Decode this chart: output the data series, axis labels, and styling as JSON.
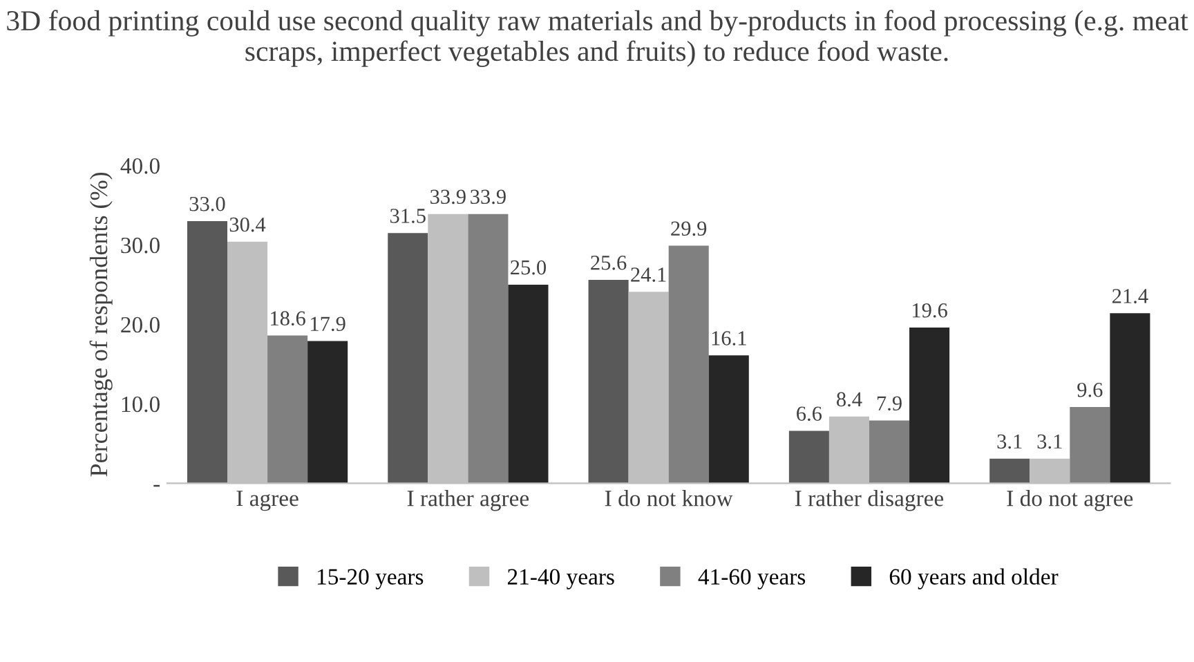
{
  "chart_data": {
    "type": "bar",
    "title": "3D food printing could use second quality raw materials and by-products in food processing (e.g. meat scraps, imperfect vegetables and fruits) to reduce food waste.",
    "ylabel": "Percentage of respondents (%)",
    "categories": [
      "I agree",
      "I rather agree",
      "I do not know",
      "I rather disagree",
      "I do not agree"
    ],
    "series": [
      {
        "name": "15-20 years",
        "color": "#595959",
        "values": [
          33.0,
          31.5,
          25.6,
          6.6,
          3.1
        ],
        "value_labels": [
          "33.0",
          "31.5",
          "25.6",
          "6.6",
          "3.1"
        ]
      },
      {
        "name": "21-40 years",
        "color": "#bfbfbf",
        "values": [
          30.4,
          33.9,
          24.1,
          8.4,
          3.1
        ],
        "value_labels": [
          "30.4",
          "33.9",
          "24.1",
          "8.4",
          "3.1"
        ]
      },
      {
        "name": "41-60 years",
        "color": "#808080",
        "values": [
          18.6,
          33.9,
          29.9,
          7.9,
          9.6
        ],
        "value_labels": [
          "18.6",
          "33.9",
          "29.9",
          "7.9",
          "9.6"
        ]
      },
      {
        "name": "60 years and older",
        "color": "#262626",
        "values": [
          17.9,
          25.0,
          16.1,
          19.6,
          21.4
        ],
        "value_labels": [
          "17.9",
          "25.0",
          "16.1",
          "19.6",
          "21.4"
        ]
      }
    ],
    "ylim": [
      0,
      40
    ],
    "yticks": [
      {
        "value": 0,
        "label": "-"
      },
      {
        "value": 10,
        "label": "10.0"
      },
      {
        "value": 20,
        "label": "20.0"
      },
      {
        "value": 30,
        "label": "30.0"
      },
      {
        "value": 40,
        "label": "40.0"
      }
    ],
    "grid": false,
    "legend": "bottom"
  }
}
